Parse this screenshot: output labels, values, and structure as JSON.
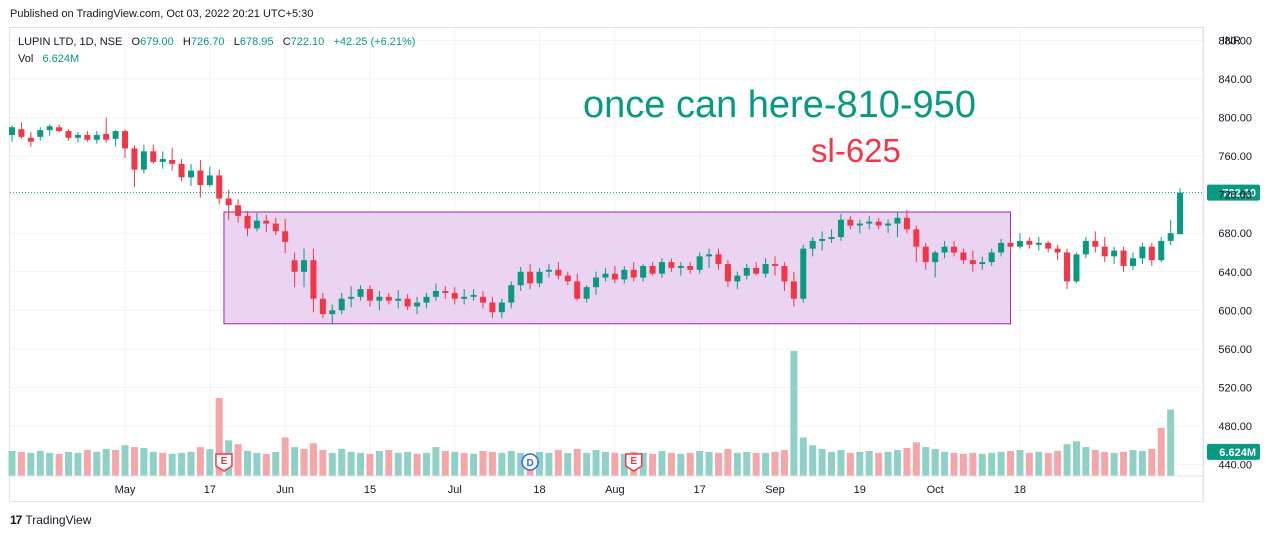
{
  "header": {
    "published": "Published on TradingView.com, Oct 03, 2022 20:21 UTC+5:30"
  },
  "legend": {
    "symbol": "LUPIN LTD, 1D, NSE",
    "o_label": "O",
    "o_value": "679.00",
    "h_label": "H",
    "h_value": "726.70",
    "l_label": "L",
    "l_value": "678.95",
    "c_label": "C",
    "c_value": "722.10",
    "change": "+42.25 (+6.21%)",
    "vol_label": "Vol",
    "vol_value": "6.624M"
  },
  "annotations": {
    "target_text": "once can here-810-950",
    "sl_text": "sl-625"
  },
  "footer": {
    "brand": "TradingView",
    "logo_glyph": "17"
  },
  "colors": {
    "up": "#089981",
    "down": "#f23645",
    "vol_up": "#8fd1c6",
    "vol_down": "#f5a6a8",
    "box_fill": "#e6cdee",
    "box_stroke": "#9c27b0"
  },
  "chart_data": {
    "type": "candlestick",
    "currency_label": "INR",
    "y_ticks": [
      "880.00",
      "840.00",
      "800.00",
      "760.00",
      "720.00",
      "680.00",
      "640.00",
      "600.00",
      "560.00",
      "520.00",
      "480.00",
      "440.00"
    ],
    "price_tick_values": [
      880,
      840,
      800,
      760,
      720,
      680,
      640,
      600,
      560,
      520,
      480,
      440
    ],
    "ylim": [
      428,
      893
    ],
    "x_ticks": [
      {
        "label": "May",
        "idx": 12
      },
      {
        "label": "17",
        "idx": 21
      },
      {
        "label": "Jun",
        "idx": 29
      },
      {
        "label": "15",
        "idx": 38
      },
      {
        "label": "Jul",
        "idx": 47
      },
      {
        "label": "18",
        "idx": 56
      },
      {
        "label": "Aug",
        "idx": 64
      },
      {
        "label": "17",
        "idx": 73
      },
      {
        "label": "Sep",
        "idx": 81
      },
      {
        "label": "19",
        "idx": 90
      },
      {
        "label": "Oct",
        "idx": 98
      },
      {
        "label": "18",
        "idx": 107
      }
    ],
    "last_price_label": "722.10",
    "last_price": 722.1,
    "volume_label": "6.624M",
    "volume_label_value": 453,
    "box": {
      "start_idx": 22.5,
      "end_idx": 106,
      "top": 702,
      "bottom": 586
    },
    "events": [
      {
        "type": "earnings",
        "glyph": "E",
        "idx": 22.5
      },
      {
        "type": "dividend",
        "glyph": "D",
        "idx": 55
      },
      {
        "type": "earnings",
        "glyph": "E",
        "idx": 66
      }
    ],
    "candles": [
      [
        782,
        792,
        775,
        790
      ],
      [
        788,
        795,
        778,
        780
      ],
      [
        779,
        785,
        770,
        775
      ],
      [
        780,
        790,
        776,
        787
      ],
      [
        787,
        793,
        781,
        791
      ],
      [
        790,
        793,
        785,
        786
      ],
      [
        786,
        788,
        776,
        779
      ],
      [
        779,
        785,
        774,
        782
      ],
      [
        782,
        786,
        775,
        777
      ],
      [
        777,
        786,
        773,
        782
      ],
      [
        783,
        800,
        774,
        777
      ],
      [
        778,
        787,
        770,
        786
      ],
      [
        786,
        788,
        758,
        768
      ],
      [
        768,
        771,
        728,
        746
      ],
      [
        746,
        772,
        742,
        765
      ],
      [
        765,
        772,
        752,
        754
      ],
      [
        754,
        765,
        747,
        757
      ],
      [
        756,
        769,
        745,
        752
      ],
      [
        752,
        757,
        734,
        738
      ],
      [
        738,
        752,
        729,
        745
      ],
      [
        745,
        756,
        717,
        730
      ],
      [
        730,
        749,
        728,
        740
      ],
      [
        740,
        746,
        710,
        716
      ],
      [
        716,
        725,
        694,
        709
      ],
      [
        709,
        715,
        691,
        698
      ],
      [
        698,
        703,
        677,
        685
      ],
      [
        685,
        701,
        682,
        693
      ],
      [
        693,
        699,
        681,
        690
      ],
      [
        690,
        696,
        678,
        682
      ],
      [
        682,
        695,
        659,
        671
      ],
      [
        652,
        660,
        624,
        640
      ],
      [
        640,
        664,
        624,
        652
      ],
      [
        652,
        664,
        598,
        612
      ],
      [
        612,
        618,
        592,
        596
      ],
      [
        596,
        606,
        586,
        600
      ],
      [
        600,
        618,
        596,
        612
      ],
      [
        612,
        625,
        603,
        614
      ],
      [
        614,
        626,
        610,
        622
      ],
      [
        622,
        626,
        604,
        610
      ],
      [
        610,
        620,
        600,
        614
      ],
      [
        614,
        618,
        606,
        610
      ],
      [
        610,
        621,
        602,
        612
      ],
      [
        612,
        617,
        600,
        604
      ],
      [
        604,
        614,
        596,
        608
      ],
      [
        608,
        618,
        602,
        614
      ],
      [
        614,
        628,
        610,
        620
      ],
      [
        620,
        625,
        612,
        618
      ],
      [
        618,
        624,
        606,
        612
      ],
      [
        612,
        622,
        606,
        614
      ],
      [
        614,
        622,
        610,
        616
      ],
      [
        614,
        620,
        602,
        608
      ],
      [
        608,
        614,
        592,
        598
      ],
      [
        598,
        612,
        592,
        608
      ],
      [
        608,
        630,
        602,
        626
      ],
      [
        626,
        645,
        620,
        640
      ],
      [
        640,
        648,
        622,
        628
      ],
      [
        628,
        644,
        624,
        640
      ],
      [
        640,
        648,
        634,
        642
      ],
      [
        642,
        650,
        632,
        636
      ],
      [
        636,
        640,
        626,
        630
      ],
      [
        630,
        638,
        610,
        612
      ],
      [
        612,
        626,
        608,
        624
      ],
      [
        624,
        640,
        616,
        634
      ],
      [
        634,
        644,
        630,
        638
      ],
      [
        638,
        646,
        628,
        632
      ],
      [
        632,
        646,
        628,
        642
      ],
      [
        642,
        650,
        630,
        634
      ],
      [
        634,
        648,
        630,
        646
      ],
      [
        646,
        650,
        636,
        638
      ],
      [
        638,
        654,
        634,
        650
      ],
      [
        650,
        654,
        640,
        644
      ],
      [
        644,
        650,
        636,
        646
      ],
      [
        646,
        650,
        638,
        642
      ],
      [
        642,
        660,
        638,
        656
      ],
      [
        656,
        664,
        644,
        658
      ],
      [
        658,
        664,
        642,
        648
      ],
      [
        648,
        652,
        624,
        630
      ],
      [
        630,
        640,
        622,
        636
      ],
      [
        636,
        648,
        632,
        644
      ],
      [
        644,
        650,
        636,
        638
      ],
      [
        638,
        654,
        634,
        648
      ],
      [
        648,
        656,
        636,
        646
      ],
      [
        646,
        650,
        620,
        630
      ],
      [
        630,
        640,
        604,
        612
      ],
      [
        612,
        668,
        608,
        664
      ],
      [
        664,
        676,
        656,
        672
      ],
      [
        672,
        682,
        662,
        674
      ],
      [
        674,
        684,
        670,
        676
      ],
      [
        676,
        700,
        672,
        694
      ],
      [
        694,
        698,
        684,
        688
      ],
      [
        688,
        694,
        680,
        690
      ],
      [
        690,
        698,
        684,
        692
      ],
      [
        692,
        696,
        684,
        688
      ],
      [
        688,
        694,
        680,
        690
      ],
      [
        690,
        702,
        676,
        696
      ],
      [
        696,
        704,
        680,
        684
      ],
      [
        684,
        688,
        650,
        666
      ],
      [
        666,
        670,
        642,
        650
      ],
      [
        650,
        662,
        634,
        660
      ],
      [
        660,
        672,
        654,
        666
      ],
      [
        666,
        672,
        656,
        660
      ],
      [
        660,
        664,
        648,
        652
      ],
      [
        652,
        662,
        640,
        648
      ],
      [
        648,
        656,
        642,
        650
      ],
      [
        650,
        664,
        646,
        660
      ],
      [
        660,
        674,
        656,
        670
      ],
      [
        670,
        676,
        660,
        666
      ],
      [
        666,
        680,
        664,
        672
      ],
      [
        672,
        676,
        664,
        668
      ],
      [
        668,
        676,
        662,
        670
      ],
      [
        670,
        672,
        660,
        664
      ],
      [
        664,
        668,
        652,
        660
      ],
      [
        660,
        664,
        622,
        630
      ],
      [
        630,
        660,
        628,
        658
      ],
      [
        658,
        676,
        654,
        672
      ],
      [
        672,
        682,
        660,
        666
      ],
      [
        666,
        676,
        650,
        656
      ],
      [
        656,
        666,
        648,
        662
      ],
      [
        662,
        666,
        640,
        646
      ],
      [
        646,
        660,
        642,
        654
      ],
      [
        654,
        670,
        648,
        666
      ],
      [
        666,
        670,
        646,
        652
      ],
      [
        652,
        676,
        650,
        672
      ],
      [
        672,
        694,
        668,
        680
      ],
      [
        679,
        726.7,
        678.95,
        722.1
      ]
    ],
    "volume": [
      [
        454,
        1
      ],
      [
        453,
        0
      ],
      [
        452,
        1
      ],
      [
        454,
        1
      ],
      [
        452,
        1
      ],
      [
        451,
        0
      ],
      [
        453,
        1
      ],
      [
        452,
        1
      ],
      [
        455,
        0
      ],
      [
        453,
        1
      ],
      [
        456,
        1
      ],
      [
        455,
        0
      ],
      [
        460,
        1
      ],
      [
        458,
        0
      ],
      [
        457,
        1
      ],
      [
        453,
        1
      ],
      [
        452,
        0
      ],
      [
        451,
        1
      ],
      [
        452,
        1
      ],
      [
        453,
        1
      ],
      [
        458,
        0
      ],
      [
        456,
        1
      ],
      [
        509,
        0
      ],
      [
        465,
        1
      ],
      [
        461,
        0
      ],
      [
        454,
        1
      ],
      [
        452,
        1
      ],
      [
        451,
        0
      ],
      [
        453,
        1
      ],
      [
        468,
        0
      ],
      [
        458,
        1
      ],
      [
        456,
        0
      ],
      [
        462,
        0
      ],
      [
        455,
        0
      ],
      [
        452,
        1
      ],
      [
        456,
        1
      ],
      [
        453,
        1
      ],
      [
        452,
        1
      ],
      [
        451,
        0
      ],
      [
        454,
        1
      ],
      [
        455,
        0
      ],
      [
        452,
        1
      ],
      [
        453,
        1
      ],
      [
        451,
        0
      ],
      [
        452,
        1
      ],
      [
        458,
        1
      ],
      [
        454,
        0
      ],
      [
        453,
        1
      ],
      [
        452,
        0
      ],
      [
        451,
        1
      ],
      [
        454,
        0
      ],
      [
        453,
        0
      ],
      [
        452,
        1
      ],
      [
        454,
        1
      ],
      [
        452,
        1
      ],
      [
        451,
        0
      ],
      [
        453,
        1
      ],
      [
        452,
        1
      ],
      [
        455,
        0
      ],
      [
        452,
        1
      ],
      [
        456,
        0
      ],
      [
        452,
        1
      ],
      [
        455,
        1
      ],
      [
        453,
        1
      ],
      [
        452,
        0
      ],
      [
        451,
        1
      ],
      [
        453,
        0
      ],
      [
        452,
        1
      ],
      [
        451,
        0
      ],
      [
        454,
        1
      ],
      [
        452,
        0
      ],
      [
        451,
        1
      ],
      [
        452,
        0
      ],
      [
        454,
        1
      ],
      [
        453,
        1
      ],
      [
        452,
        0
      ],
      [
        456,
        0
      ],
      [
        452,
        1
      ],
      [
        453,
        1
      ],
      [
        452,
        0
      ],
      [
        452,
        1
      ],
      [
        453,
        0
      ],
      [
        455,
        0
      ],
      [
        558,
        1
      ],
      [
        468,
        1
      ],
      [
        460,
        1
      ],
      [
        456,
        1
      ],
      [
        453,
        1
      ],
      [
        455,
        1
      ],
      [
        452,
        0
      ],
      [
        453,
        1
      ],
      [
        454,
        1
      ],
      [
        452,
        0
      ],
      [
        453,
        1
      ],
      [
        455,
        1
      ],
      [
        457,
        0
      ],
      [
        463,
        0
      ],
      [
        458,
        1
      ],
      [
        456,
        1
      ],
      [
        453,
        1
      ],
      [
        452,
        0
      ],
      [
        451,
        0
      ],
      [
        452,
        0
      ],
      [
        451,
        1
      ],
      [
        452,
        1
      ],
      [
        453,
        1
      ],
      [
        454,
        0
      ],
      [
        455,
        1
      ],
      [
        452,
        0
      ],
      [
        453,
        1
      ],
      [
        452,
        0
      ],
      [
        454,
        0
      ],
      [
        461,
        1
      ],
      [
        464,
        1
      ],
      [
        458,
        1
      ],
      [
        455,
        0
      ],
      [
        453,
        0
      ],
      [
        452,
        1
      ],
      [
        453,
        0
      ],
      [
        455,
        1
      ],
      [
        454,
        1
      ],
      [
        456,
        0
      ],
      [
        478,
        0
      ],
      [
        497,
        1
      ]
    ]
  }
}
